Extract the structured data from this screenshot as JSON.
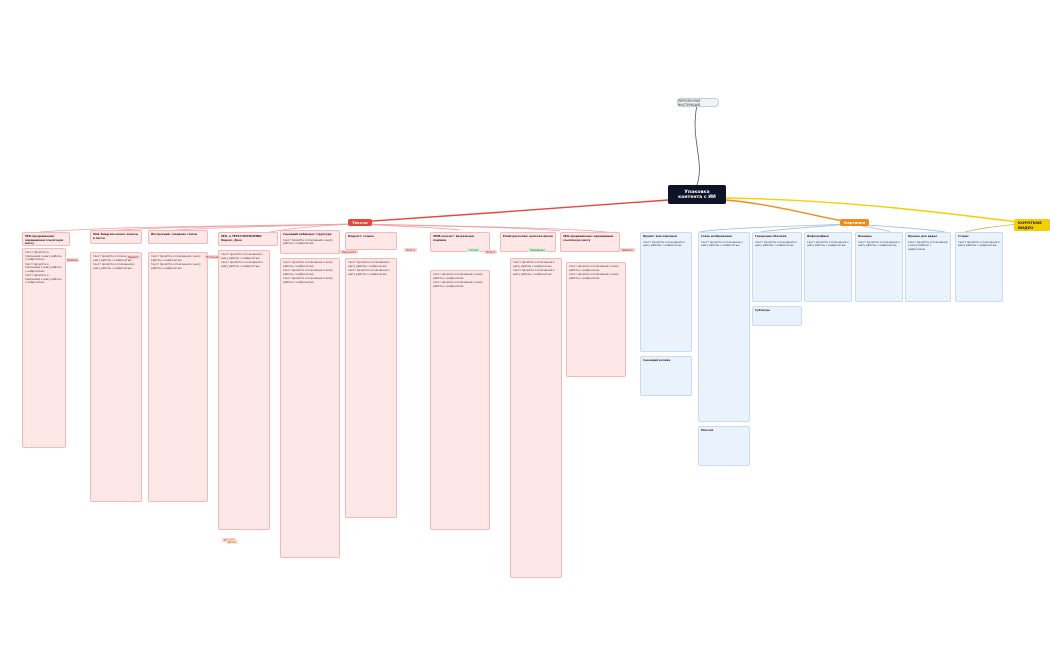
{
  "top_node": "ПЕРЕМЕННАЯ ИНСТРУКЦИЯ",
  "center": "Упаковка контента с ИИ",
  "branches": {
    "left": "Тексты",
    "mid": "Картинки",
    "right": "КОРОТКИЕ ВИДЕО"
  },
  "colors": {
    "left": "#e8453c",
    "mid": "#f08c1c",
    "right": "#f5d000",
    "center": "#0f1328"
  },
  "red_headers": [
    "SEO-продвижение: наращиваем ссылочную массу",
    "Мой Telegram-канал: анонсы и посты",
    "Инструкция: создание статьи",
    "SEO- и TEXT-ПЛАТФОРМЫ: Яндекс, Дзен",
    "Сценарий вебинара: структура",
    "Подкаст: тезисы",
    "SMM-контент: визуальные подписи",
    "Email-рассылка: цепочка писем"
  ],
  "red_tags": [
    "Пример",
    "Промпт",
    "Источник",
    "Результат",
    "Этап 1",
    "Этап 2",
    "Шаблон",
    "Ссылки",
    "Итоги"
  ],
  "green_tags": [
    "Готово",
    "Проверено"
  ],
  "blue_headers": [
    "Промпт для картинки",
    "Стиль изображения",
    "Генерация обложки",
    "Инфографика",
    "Баннеры",
    "Превью для видео",
    "Сторис"
  ],
  "right_headers": [
    "Сценарий ролика",
    "Монтаж",
    "Субтитры"
  ],
  "sample_line": "текст промпта и пояснения к шагу работы с нейросетью"
}
